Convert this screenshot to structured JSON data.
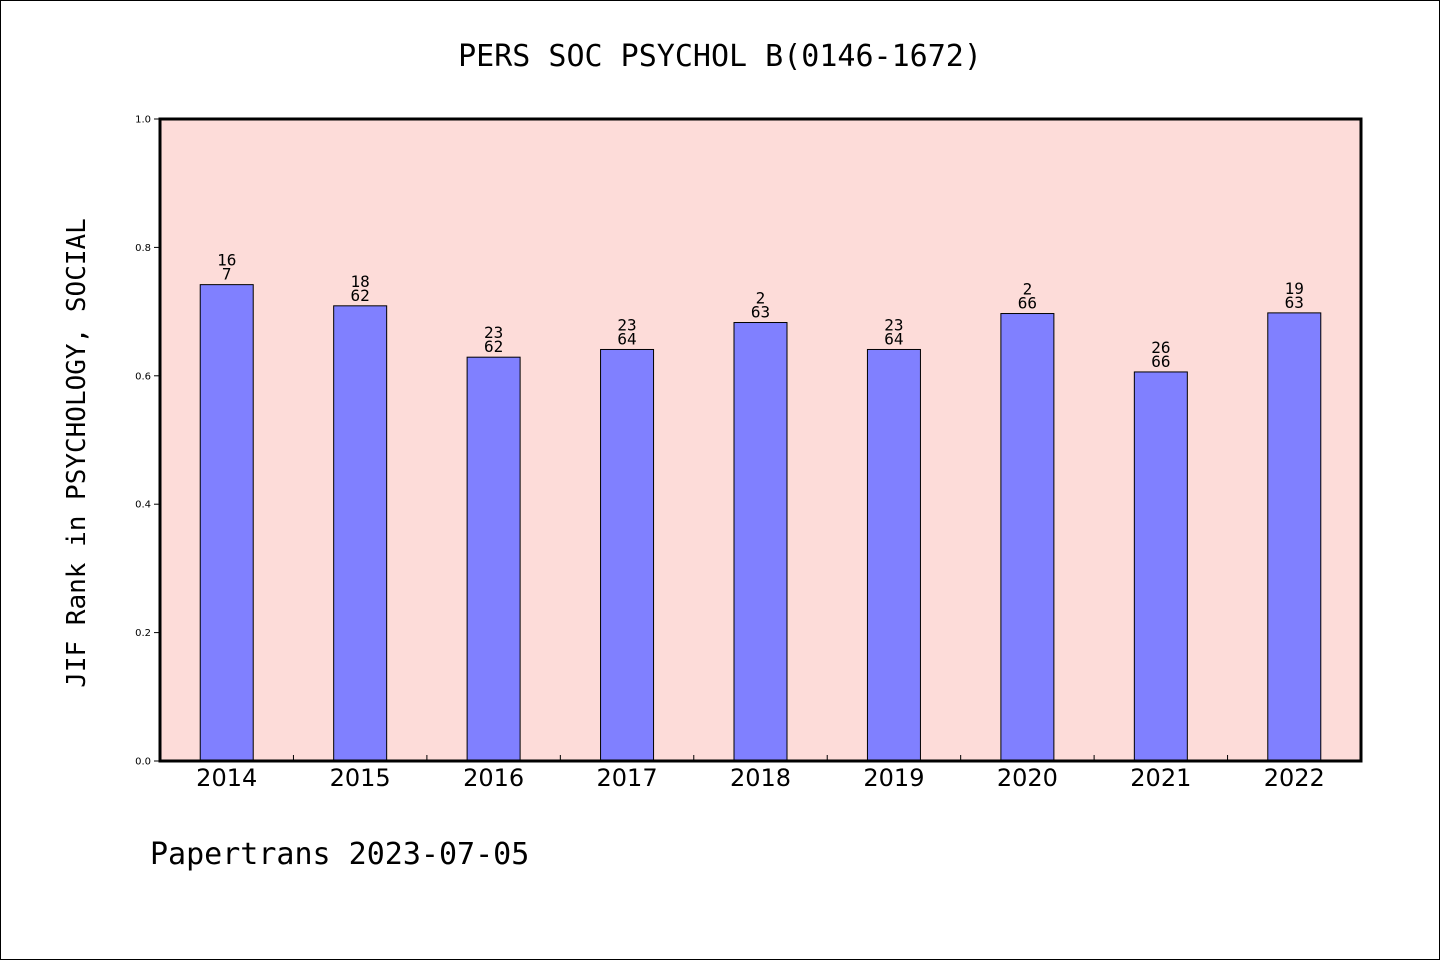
{
  "chart_data": {
    "type": "bar",
    "title": "PERS SOC PSYCHOL B(0146-1672)",
    "ylabel": "JIF Rank in PSYCHOLOGY, SOCIAL",
    "xlabel": "",
    "ylim": [
      0,
      1.0
    ],
    "yticks": [
      "0.0",
      "0.2",
      "0.4",
      "0.6",
      "0.8",
      "1.0"
    ],
    "categories": [
      "2014",
      "2015",
      "2016",
      "2017",
      "2018",
      "2019",
      "2020",
      "2021",
      "2022"
    ],
    "values": [
      0.742,
      0.709,
      0.629,
      0.641,
      0.683,
      0.641,
      0.697,
      0.606,
      0.698
    ],
    "labels": [
      [
        "16",
        "7"
      ],
      [
        "18",
        "62"
      ],
      [
        "23",
        "62"
      ],
      [
        "23",
        "64"
      ],
      [
        "2",
        "63"
      ],
      [
        "23",
        "64"
      ],
      [
        "2",
        "66"
      ],
      [
        "26",
        "66"
      ],
      [
        "19",
        "63"
      ]
    ],
    "colors": {
      "bar": "#8080ff",
      "plot_background": "#fddcd9"
    },
    "grid": false
  },
  "footer": "Papertrans 2023-07-05"
}
